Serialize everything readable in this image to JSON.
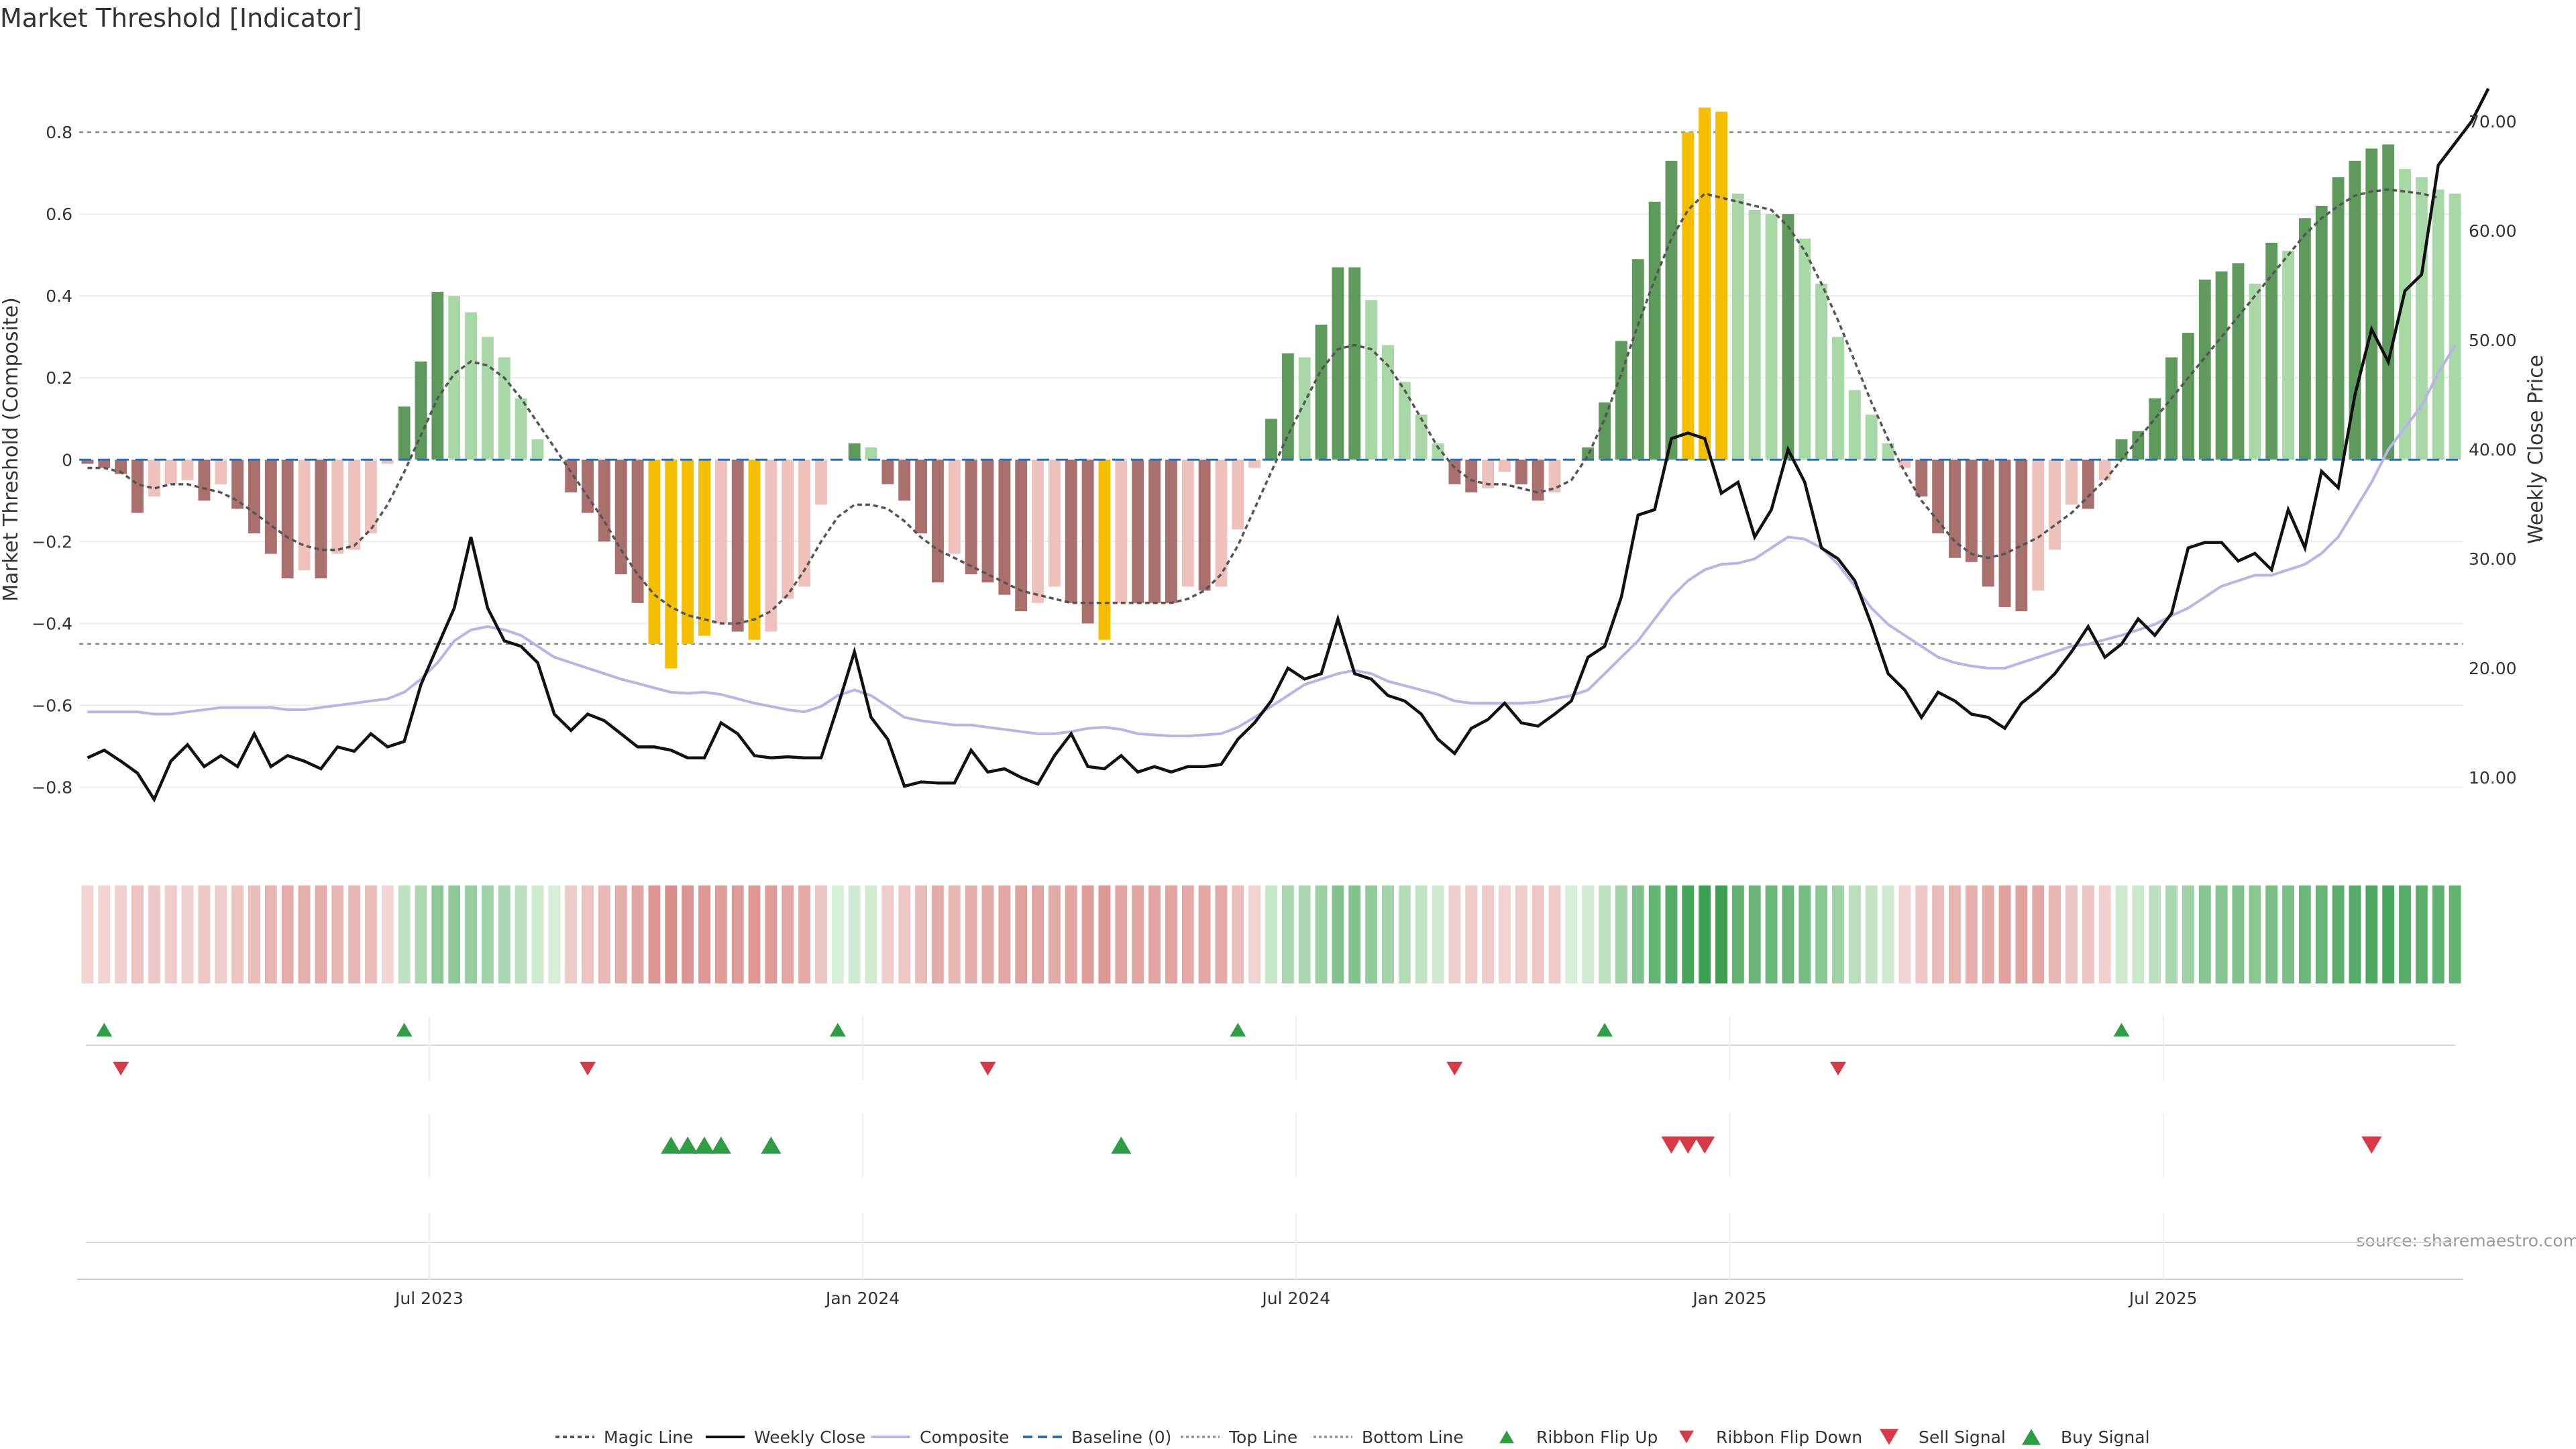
{
  "chart_data": {
    "type": "bar",
    "title": "Market Threshold [Indicator]",
    "ylabel": "Market Threshold (Composite)",
    "y2label": "Weekly Close Price",
    "ylim": [
      -0.95,
      1.0
    ],
    "y2lim": [
      3.5,
      76.5
    ],
    "yticks": [
      -0.8,
      -0.6,
      -0.4,
      -0.2,
      0,
      0.2,
      0.4,
      0.6,
      0.8
    ],
    "ytick_labels": [
      "−0.8",
      "−0.6",
      "−0.4",
      "−0.2",
      "0",
      "0.2",
      "0.4",
      "0.6",
      "0.8"
    ],
    "y2ticks": [
      10,
      20,
      30,
      40,
      50,
      60,
      70
    ],
    "y2tick_labels": [
      "10.00",
      "20.00",
      "30.00",
      "40.00",
      "50.00",
      "60.00",
      "70.00"
    ],
    "top_line": 0.8,
    "bottom_line": -0.45,
    "baseline": 0,
    "start_date": "2023-01-27",
    "weeks": 143,
    "x_tick_labels": [
      {
        "week": 21,
        "label": "Jul 2023"
      },
      {
        "week": 47,
        "label": "Jan 2024"
      },
      {
        "week": 73,
        "label": "Jul 2024"
      },
      {
        "week": 99,
        "label": "Jan 2025"
      },
      {
        "week": 125,
        "label": "Jul 2025"
      }
    ],
    "series": [
      {
        "name": "Composite (bars)",
        "values": [
          -0.01,
          -0.02,
          -0.035,
          -0.13,
          -0.09,
          -0.06,
          -0.05,
          -0.1,
          -0.06,
          -0.12,
          -0.18,
          -0.23,
          -0.29,
          -0.27,
          -0.29,
          -0.23,
          -0.22,
          -0.18,
          -0.01,
          0.13,
          0.24,
          0.41,
          0.4,
          0.36,
          0.3,
          0.25,
          0.15,
          0.05,
          0,
          -0.08,
          -0.13,
          -0.2,
          -0.28,
          -0.35,
          -0.45,
          -0.51,
          -0.45,
          -0.43,
          -0.4,
          -0.42,
          -0.44,
          -0.42,
          -0.34,
          -0.31,
          -0.11,
          0,
          0.04,
          0.03,
          -0.06,
          -0.1,
          -0.18,
          -0.3,
          -0.23,
          -0.28,
          -0.3,
          -0.33,
          -0.37,
          -0.35,
          -0.31,
          -0.35,
          -0.4,
          -0.44,
          -0.35,
          -0.35,
          -0.35,
          -0.35,
          -0.31,
          -0.32,
          -0.31,
          -0.17,
          -0.02,
          0.1,
          0.26,
          0.25,
          0.33,
          0.47,
          0.47,
          0.39,
          0.28,
          0.19,
          0.11,
          0.04,
          -0.06,
          -0.08,
          -0.07,
          -0.03,
          -0.06,
          -0.1,
          -0.08,
          0,
          0.03,
          0.14,
          0.29,
          0.49,
          0.63,
          0.73,
          0.8,
          0.86,
          0.85,
          0.65,
          0.61,
          0.6,
          0.6,
          0.54,
          0.43,
          0.3,
          0.17,
          0.11,
          0.04,
          -0.02,
          -0.09,
          -0.18,
          -0.24,
          -0.25,
          -0.31,
          -0.36,
          -0.37,
          -0.32,
          -0.22,
          -0.11,
          -0.12,
          -0.05,
          0.05,
          0.07,
          0.15,
          0.25,
          0.31,
          0.44,
          0.46,
          0.48,
          0.43,
          0.53,
          0.51,
          0.59,
          0.62,
          0.69,
          0.73,
          0.76,
          0.77,
          0.71,
          0.69,
          0.66,
          0.65
        ]
      },
      {
        "name": "Magic Line",
        "values": [
          -0.02,
          -0.02,
          -0.03,
          -0.06,
          -0.07,
          -0.06,
          -0.06,
          -0.07,
          -0.08,
          -0.1,
          -0.13,
          -0.16,
          -0.19,
          -0.21,
          -0.22,
          -0.22,
          -0.21,
          -0.17,
          -0.11,
          -0.03,
          0.06,
          0.15,
          0.21,
          0.24,
          0.23,
          0.2,
          0.15,
          0.09,
          0.03,
          -0.03,
          -0.09,
          -0.15,
          -0.22,
          -0.28,
          -0.33,
          -0.36,
          -0.38,
          -0.39,
          -0.4,
          -0.4,
          -0.39,
          -0.37,
          -0.33,
          -0.27,
          -0.2,
          -0.14,
          -0.11,
          -0.11,
          -0.12,
          -0.15,
          -0.19,
          -0.22,
          -0.24,
          -0.26,
          -0.28,
          -0.3,
          -0.32,
          -0.33,
          -0.34,
          -0.35,
          -0.35,
          -0.35,
          -0.35,
          -0.35,
          -0.35,
          -0.35,
          -0.34,
          -0.32,
          -0.28,
          -0.21,
          -0.12,
          -0.03,
          0.06,
          0.14,
          0.22,
          0.27,
          0.28,
          0.27,
          0.23,
          0.17,
          0.1,
          0.03,
          -0.02,
          -0.05,
          -0.06,
          -0.06,
          -0.07,
          -0.08,
          -0.07,
          -0.05,
          0.01,
          0.1,
          0.21,
          0.33,
          0.44,
          0.54,
          0.61,
          0.65,
          0.64,
          0.63,
          0.62,
          0.61,
          0.57,
          0.51,
          0.43,
          0.34,
          0.24,
          0.14,
          0.05,
          -0.03,
          -0.1,
          -0.15,
          -0.2,
          -0.23,
          -0.24,
          -0.23,
          -0.21,
          -0.19,
          -0.16,
          -0.13,
          -0.09,
          -0.05,
          0.0,
          0.05,
          0.1,
          0.15,
          0.2,
          0.25,
          0.3,
          0.35,
          0.4,
          0.45,
          0.5,
          0.55,
          0.59,
          0.62,
          0.645,
          0.655,
          0.66,
          0.655,
          0.65,
          0.64
        ]
      },
      {
        "name": "Weekly Close",
        "axis": "right",
        "values": [
          11.8,
          12.5,
          11.5,
          10.4,
          8,
          11.5,
          13,
          11,
          12,
          11,
          14,
          11,
          12,
          11.5,
          10.8,
          12.8,
          12.4,
          14,
          12.8,
          13.3,
          18.5,
          22,
          25.5,
          32,
          25.5,
          22.5,
          22,
          20.5,
          15.8,
          14.3,
          15.8,
          15.2,
          14,
          12.8,
          12.8,
          12.5,
          11.8,
          11.8,
          15,
          14,
          12,
          11.8,
          11.9,
          11.8,
          11.8,
          16.5,
          21.5,
          15.5,
          13.5,
          9.2,
          9.6,
          9.5,
          9.5,
          12.5,
          10.5,
          10.8,
          10,
          9.4,
          12,
          14,
          11,
          10.8,
          12,
          10.5,
          11,
          10.5,
          11,
          11,
          11.2,
          13.5,
          15,
          17,
          20,
          19,
          19.5,
          24.5,
          19.5,
          19,
          17.5,
          17,
          15.8,
          13.5,
          12.2,
          14.5,
          15.3,
          16.8,
          15,
          14.7,
          15.8,
          17,
          21,
          22,
          26.5,
          34,
          34.5,
          41,
          41.5,
          41,
          36,
          37,
          32,
          34.5,
          40,
          37,
          31,
          30,
          28,
          24,
          19.5,
          18,
          15.5,
          17.8,
          17,
          15.8,
          15.5,
          14.5,
          16.8,
          18,
          19.5,
          21.5,
          23.8,
          21,
          22.2,
          24.5,
          23,
          25,
          31,
          31.5,
          31.5,
          29.8,
          30.5,
          29,
          34.5,
          31,
          38,
          36.5,
          45,
          51,
          48,
          54.5,
          56,
          66,
          68,
          70,
          73
        ]
      },
      {
        "name": "Composite",
        "axis": "right",
        "values": [
          16,
          16,
          16,
          16,
          15.8,
          15.8,
          16,
          16.2,
          16.4,
          16.4,
          16.4,
          16.4,
          16.2,
          16.2,
          16.4,
          16.6,
          16.8,
          17,
          17.2,
          17.8,
          19,
          20.5,
          22.5,
          23.5,
          23.8,
          23.5,
          23,
          22,
          21,
          20.5,
          20,
          19.5,
          19,
          18.6,
          18.2,
          17.8,
          17.7,
          17.8,
          17.6,
          17.2,
          16.8,
          16.5,
          16.2,
          16,
          16.5,
          17.5,
          18,
          17.5,
          16.5,
          15.5,
          15.2,
          15,
          14.8,
          14.8,
          14.6,
          14.4,
          14.2,
          14,
          14,
          14.2,
          14.5,
          14.6,
          14.4,
          14,
          13.9,
          13.8,
          13.8,
          13.9,
          14,
          14.6,
          15.5,
          16.5,
          17.5,
          18.5,
          19,
          19.5,
          19.8,
          19.5,
          18.8,
          18.4,
          18,
          17.6,
          17,
          16.8,
          16.8,
          16.8,
          16.8,
          16.9,
          17.2,
          17.5,
          18,
          19.5,
          21,
          22.5,
          24.5,
          26.5,
          28,
          29,
          29.5,
          29.6,
          30,
          31,
          32,
          31.8,
          31,
          29.5,
          27.5,
          25.5,
          24,
          23,
          22,
          21,
          20.5,
          20.2,
          20,
          20,
          20.5,
          21,
          21.5,
          22,
          22.2,
          22.6,
          23,
          23.5,
          24,
          24.8,
          25.5,
          26.5,
          27.5,
          28,
          28.5,
          28.5,
          29,
          29.5,
          30.5,
          32,
          34.5,
          37,
          40,
          42,
          44,
          47,
          49.5
        ]
      }
    ],
    "ribbon_flip_up_weeks": [
      1,
      19,
      45,
      69,
      91,
      122
    ],
    "ribbon_flip_down_weeks": [
      2,
      30,
      54,
      82,
      105
    ],
    "buy_signal_weeks": [
      35,
      36,
      37,
      38,
      41,
      62
    ],
    "sell_signal_weeks": [
      95,
      96,
      97,
      137
    ],
    "legend": [
      "Magic Line",
      "Weekly Close",
      "Composite",
      "Baseline (0)",
      "Top Line",
      "Bottom Line",
      "Ribbon Flip Up",
      "Ribbon Flip Down",
      "Sell Signal",
      "Buy Signal"
    ],
    "legend_placement": "bottom-center",
    "source": "source: sharemaestro.com"
  },
  "colors": {
    "bull_dark": "#5e9a5c",
    "bull_light": "#a8d8a5",
    "bear_dark": "#a9706d",
    "bear_light": "#efc1bc",
    "extreme": "#f5bf00",
    "magic": "#555555",
    "close": "#111111",
    "composite": "#b9b3e6",
    "baseline": "#2f6fb0",
    "threshold": "#888888",
    "up": "#2e9e44",
    "down": "#d63a47"
  }
}
